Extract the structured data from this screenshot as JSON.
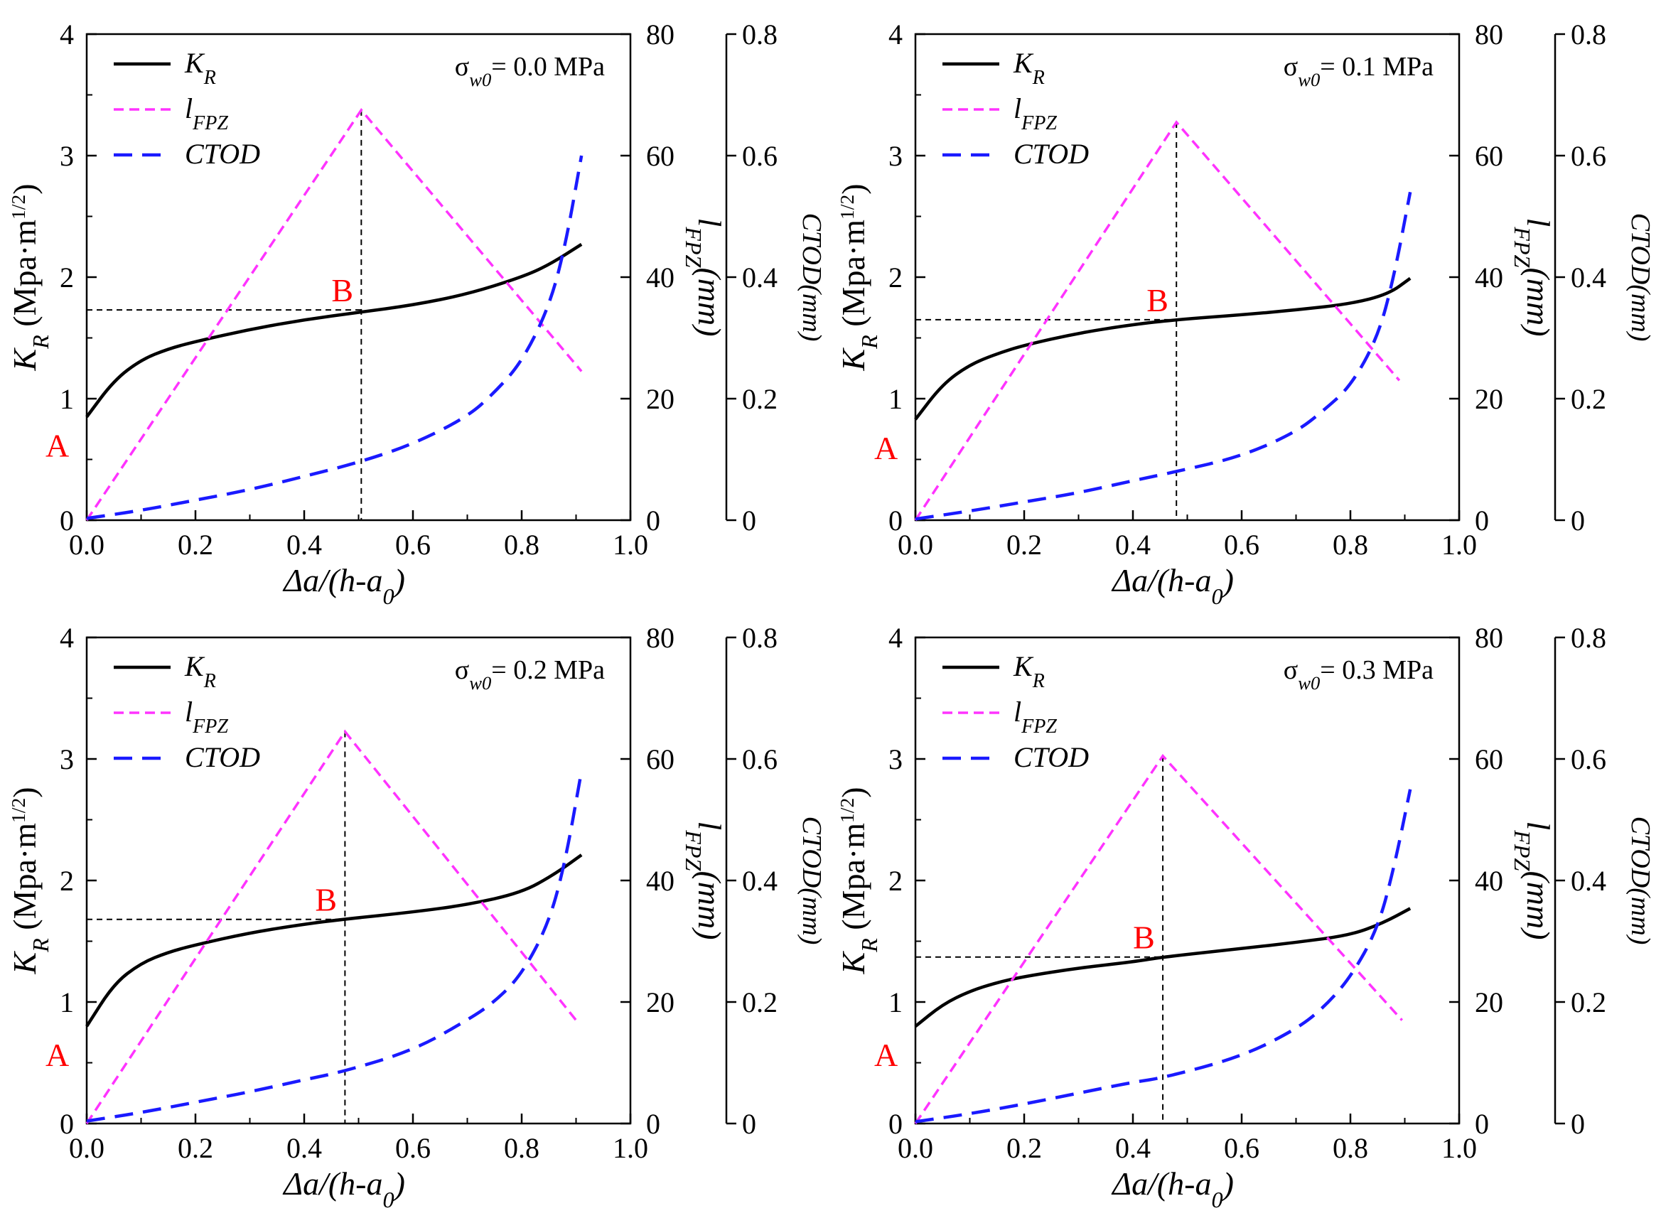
{
  "figure": {
    "x_axis_title_main": "Δa/(h-a",
    "x_axis_title_sub": "0",
    "x_axis_title_tail": ")",
    "y_axis_title_main": "K",
    "y_axis_title_sub": "R",
    "y_axis_title_units": " (Mpa·m",
    "y_axis_title_exp": "1/2",
    "y_axis_title_tail": ")",
    "lfpz_axis_title": "lFPZ(mm)",
    "ctod_axis_title": "CTOD(mm)",
    "legend": {
      "kr": "K",
      "kr_sub": "R",
      "lfpz": "l",
      "lfpz_sub": "FPZ",
      "ctod": "CTOD"
    },
    "colors": {
      "kr": "#000000",
      "lfpz": "#ff33ff",
      "ctod": "#1a1aff",
      "points": "#ff0000"
    },
    "point_labels": {
      "a": "A",
      "b": "B"
    },
    "stress_symbol": "σ",
    "stress_sub": "w0",
    "stress_eq": "= "
  },
  "chart_data": [
    {
      "type": "line",
      "title": "σw0= 0.0 MPa",
      "stress_value": "0.0 MPa",
      "xlabel": "Δa/(h-a0)",
      "ylabel": "KR (Mpa·m1/2)",
      "xlim": [
        0,
        1.0
      ],
      "x_ticks": [
        "0.0",
        "0.2",
        "0.4",
        "0.6",
        "0.8",
        "1.0"
      ],
      "ylim": [
        0,
        4
      ],
      "y_ticks": [
        "0",
        "1",
        "2",
        "3",
        "4"
      ],
      "y2_ticks": [
        "0",
        "20",
        "40",
        "60",
        "80"
      ],
      "y3_ticks": [
        "0",
        "0.2",
        "0.4",
        "0.6",
        "0.8"
      ],
      "series": [
        {
          "name": "KR",
          "axis": "KR",
          "x": [
            0,
            0.05,
            0.1,
            0.15,
            0.2,
            0.3,
            0.4,
            0.5,
            0.6,
            0.7,
            0.8,
            0.85,
            0.91
          ],
          "values": [
            0.85,
            1.15,
            1.32,
            1.41,
            1.47,
            1.57,
            1.65,
            1.71,
            1.77,
            1.86,
            2.0,
            2.1,
            2.27
          ]
        },
        {
          "name": "lFPZ",
          "axis": "lFPZ",
          "x": [
            0,
            0.505,
            0.91
          ],
          "values": [
            0,
            67.5,
            24.5
          ]
        },
        {
          "name": "CTOD",
          "axis": "CTOD",
          "x": [
            0,
            0.1,
            0.2,
            0.3,
            0.4,
            0.5,
            0.6,
            0.7,
            0.75,
            0.8,
            0.85,
            0.88,
            0.91
          ],
          "values": [
            0.003,
            0.016,
            0.033,
            0.05,
            0.072,
            0.095,
            0.125,
            0.17,
            0.21,
            0.26,
            0.35,
            0.45,
            0.6
          ]
        }
      ],
      "point_a": {
        "x": 0,
        "y": 0.85
      },
      "point_b": {
        "x": 0.505,
        "y": 1.73
      }
    },
    {
      "type": "line",
      "title": "σw0= 0.1 MPa",
      "stress_value": "0.1 MPa",
      "xlabel": "Δa/(h-a0)",
      "ylabel": "KR (Mpa·m1/2)",
      "xlim": [
        0,
        1.0
      ],
      "x_ticks": [
        "0.0",
        "0.2",
        "0.4",
        "0.6",
        "0.8",
        "1.0"
      ],
      "ylim": [
        0,
        4
      ],
      "y_ticks": [
        "0",
        "1",
        "2",
        "3",
        "4"
      ],
      "y2_ticks": [
        "0",
        "20",
        "40",
        "60",
        "80"
      ],
      "y3_ticks": [
        "0",
        "0.2",
        "0.4",
        "0.6",
        "0.8"
      ],
      "series": [
        {
          "name": "KR",
          "axis": "KR",
          "x": [
            0,
            0.05,
            0.1,
            0.15,
            0.2,
            0.3,
            0.4,
            0.48,
            0.6,
            0.7,
            0.8,
            0.87,
            0.91
          ],
          "values": [
            0.83,
            1.12,
            1.28,
            1.37,
            1.44,
            1.54,
            1.61,
            1.65,
            1.69,
            1.73,
            1.78,
            1.86,
            1.99
          ]
        },
        {
          "name": "lFPZ",
          "axis": "lFPZ",
          "x": [
            0,
            0.48,
            0.89
          ],
          "values": [
            0,
            65.5,
            23
          ]
        },
        {
          "name": "CTOD",
          "axis": "CTOD",
          "x": [
            0,
            0.1,
            0.2,
            0.3,
            0.4,
            0.48,
            0.6,
            0.7,
            0.75,
            0.8,
            0.85,
            0.88,
            0.91
          ],
          "values": [
            0.002,
            0.015,
            0.03,
            0.045,
            0.065,
            0.08,
            0.105,
            0.145,
            0.18,
            0.22,
            0.3,
            0.4,
            0.54
          ]
        }
      ],
      "point_a": {
        "x": 0,
        "y": 0.83
      },
      "point_b": {
        "x": 0.48,
        "y": 1.65
      }
    },
    {
      "type": "line",
      "title": "σw0= 0.2 MPa",
      "stress_value": "0.2 MPa",
      "xlabel": "Δa/(h-a0)",
      "ylabel": "KR (Mpa·m1/2)",
      "xlim": [
        0,
        1.0
      ],
      "x_ticks": [
        "0.0",
        "0.2",
        "0.4",
        "0.6",
        "0.8",
        "1.0"
      ],
      "ylim": [
        0,
        4
      ],
      "y_ticks": [
        "0",
        "1",
        "2",
        "3",
        "4"
      ],
      "y2_ticks": [
        "0",
        "20",
        "40",
        "60",
        "80"
      ],
      "y3_ticks": [
        "0",
        "0.2",
        "0.4",
        "0.6",
        "0.8"
      ],
      "series": [
        {
          "name": "KR",
          "axis": "KR",
          "x": [
            0,
            0.05,
            0.1,
            0.15,
            0.2,
            0.3,
            0.4,
            0.47,
            0.6,
            0.7,
            0.8,
            0.86,
            0.91
          ],
          "values": [
            0.8,
            1.15,
            1.32,
            1.41,
            1.47,
            1.57,
            1.64,
            1.68,
            1.74,
            1.8,
            1.9,
            2.05,
            2.21
          ]
        },
        {
          "name": "lFPZ",
          "axis": "lFPZ",
          "x": [
            0,
            0.475,
            0.9
          ],
          "values": [
            0,
            64.5,
            17
          ]
        },
        {
          "name": "CTOD",
          "axis": "CTOD",
          "x": [
            0,
            0.1,
            0.2,
            0.3,
            0.4,
            0.47,
            0.6,
            0.7,
            0.75,
            0.8,
            0.85,
            0.88,
            0.91
          ],
          "values": [
            0.004,
            0.018,
            0.035,
            0.052,
            0.072,
            0.085,
            0.12,
            0.17,
            0.2,
            0.245,
            0.33,
            0.43,
            0.58
          ]
        }
      ],
      "point_a": {
        "x": 0,
        "y": 0.8
      },
      "point_b": {
        "x": 0.475,
        "y": 1.68
      }
    },
    {
      "type": "line",
      "title": "σw0= 0.3 MPa",
      "stress_value": "0.3 MPa",
      "xlabel": "Δa/(h-a0)",
      "ylabel": "KR (Mpa·m1/2)",
      "xlim": [
        0,
        1.0
      ],
      "x_ticks": [
        "0.0",
        "0.2",
        "0.4",
        "0.6",
        "0.8",
        "1.0"
      ],
      "ylim": [
        0,
        4
      ],
      "y_ticks": [
        "0",
        "1",
        "2",
        "3",
        "4"
      ],
      "y2_ticks": [
        "0",
        "20",
        "40",
        "60",
        "80"
      ],
      "y3_ticks": [
        "0",
        "0.2",
        "0.4",
        "0.6",
        "0.8"
      ],
      "series": [
        {
          "name": "KR",
          "axis": "KR",
          "x": [
            0,
            0.05,
            0.1,
            0.15,
            0.2,
            0.3,
            0.4,
            0.455,
            0.6,
            0.7,
            0.8,
            0.86,
            0.91
          ],
          "values": [
            0.8,
            0.98,
            1.09,
            1.16,
            1.21,
            1.28,
            1.33,
            1.37,
            1.44,
            1.49,
            1.55,
            1.65,
            1.77
          ]
        },
        {
          "name": "lFPZ",
          "axis": "lFPZ",
          "x": [
            0,
            0.455,
            0.895
          ],
          "values": [
            0,
            60.5,
            17
          ]
        },
        {
          "name": "CTOD",
          "axis": "CTOD",
          "x": [
            0,
            0.1,
            0.2,
            0.3,
            0.4,
            0.455,
            0.6,
            0.7,
            0.75,
            0.8,
            0.85,
            0.88,
            0.91
          ],
          "values": [
            0.003,
            0.016,
            0.032,
            0.05,
            0.068,
            0.075,
            0.11,
            0.155,
            0.19,
            0.24,
            0.32,
            0.42,
            0.55
          ]
        }
      ],
      "point_a": {
        "x": 0,
        "y": 0.8
      },
      "point_b": {
        "x": 0.455,
        "y": 1.37
      }
    }
  ]
}
